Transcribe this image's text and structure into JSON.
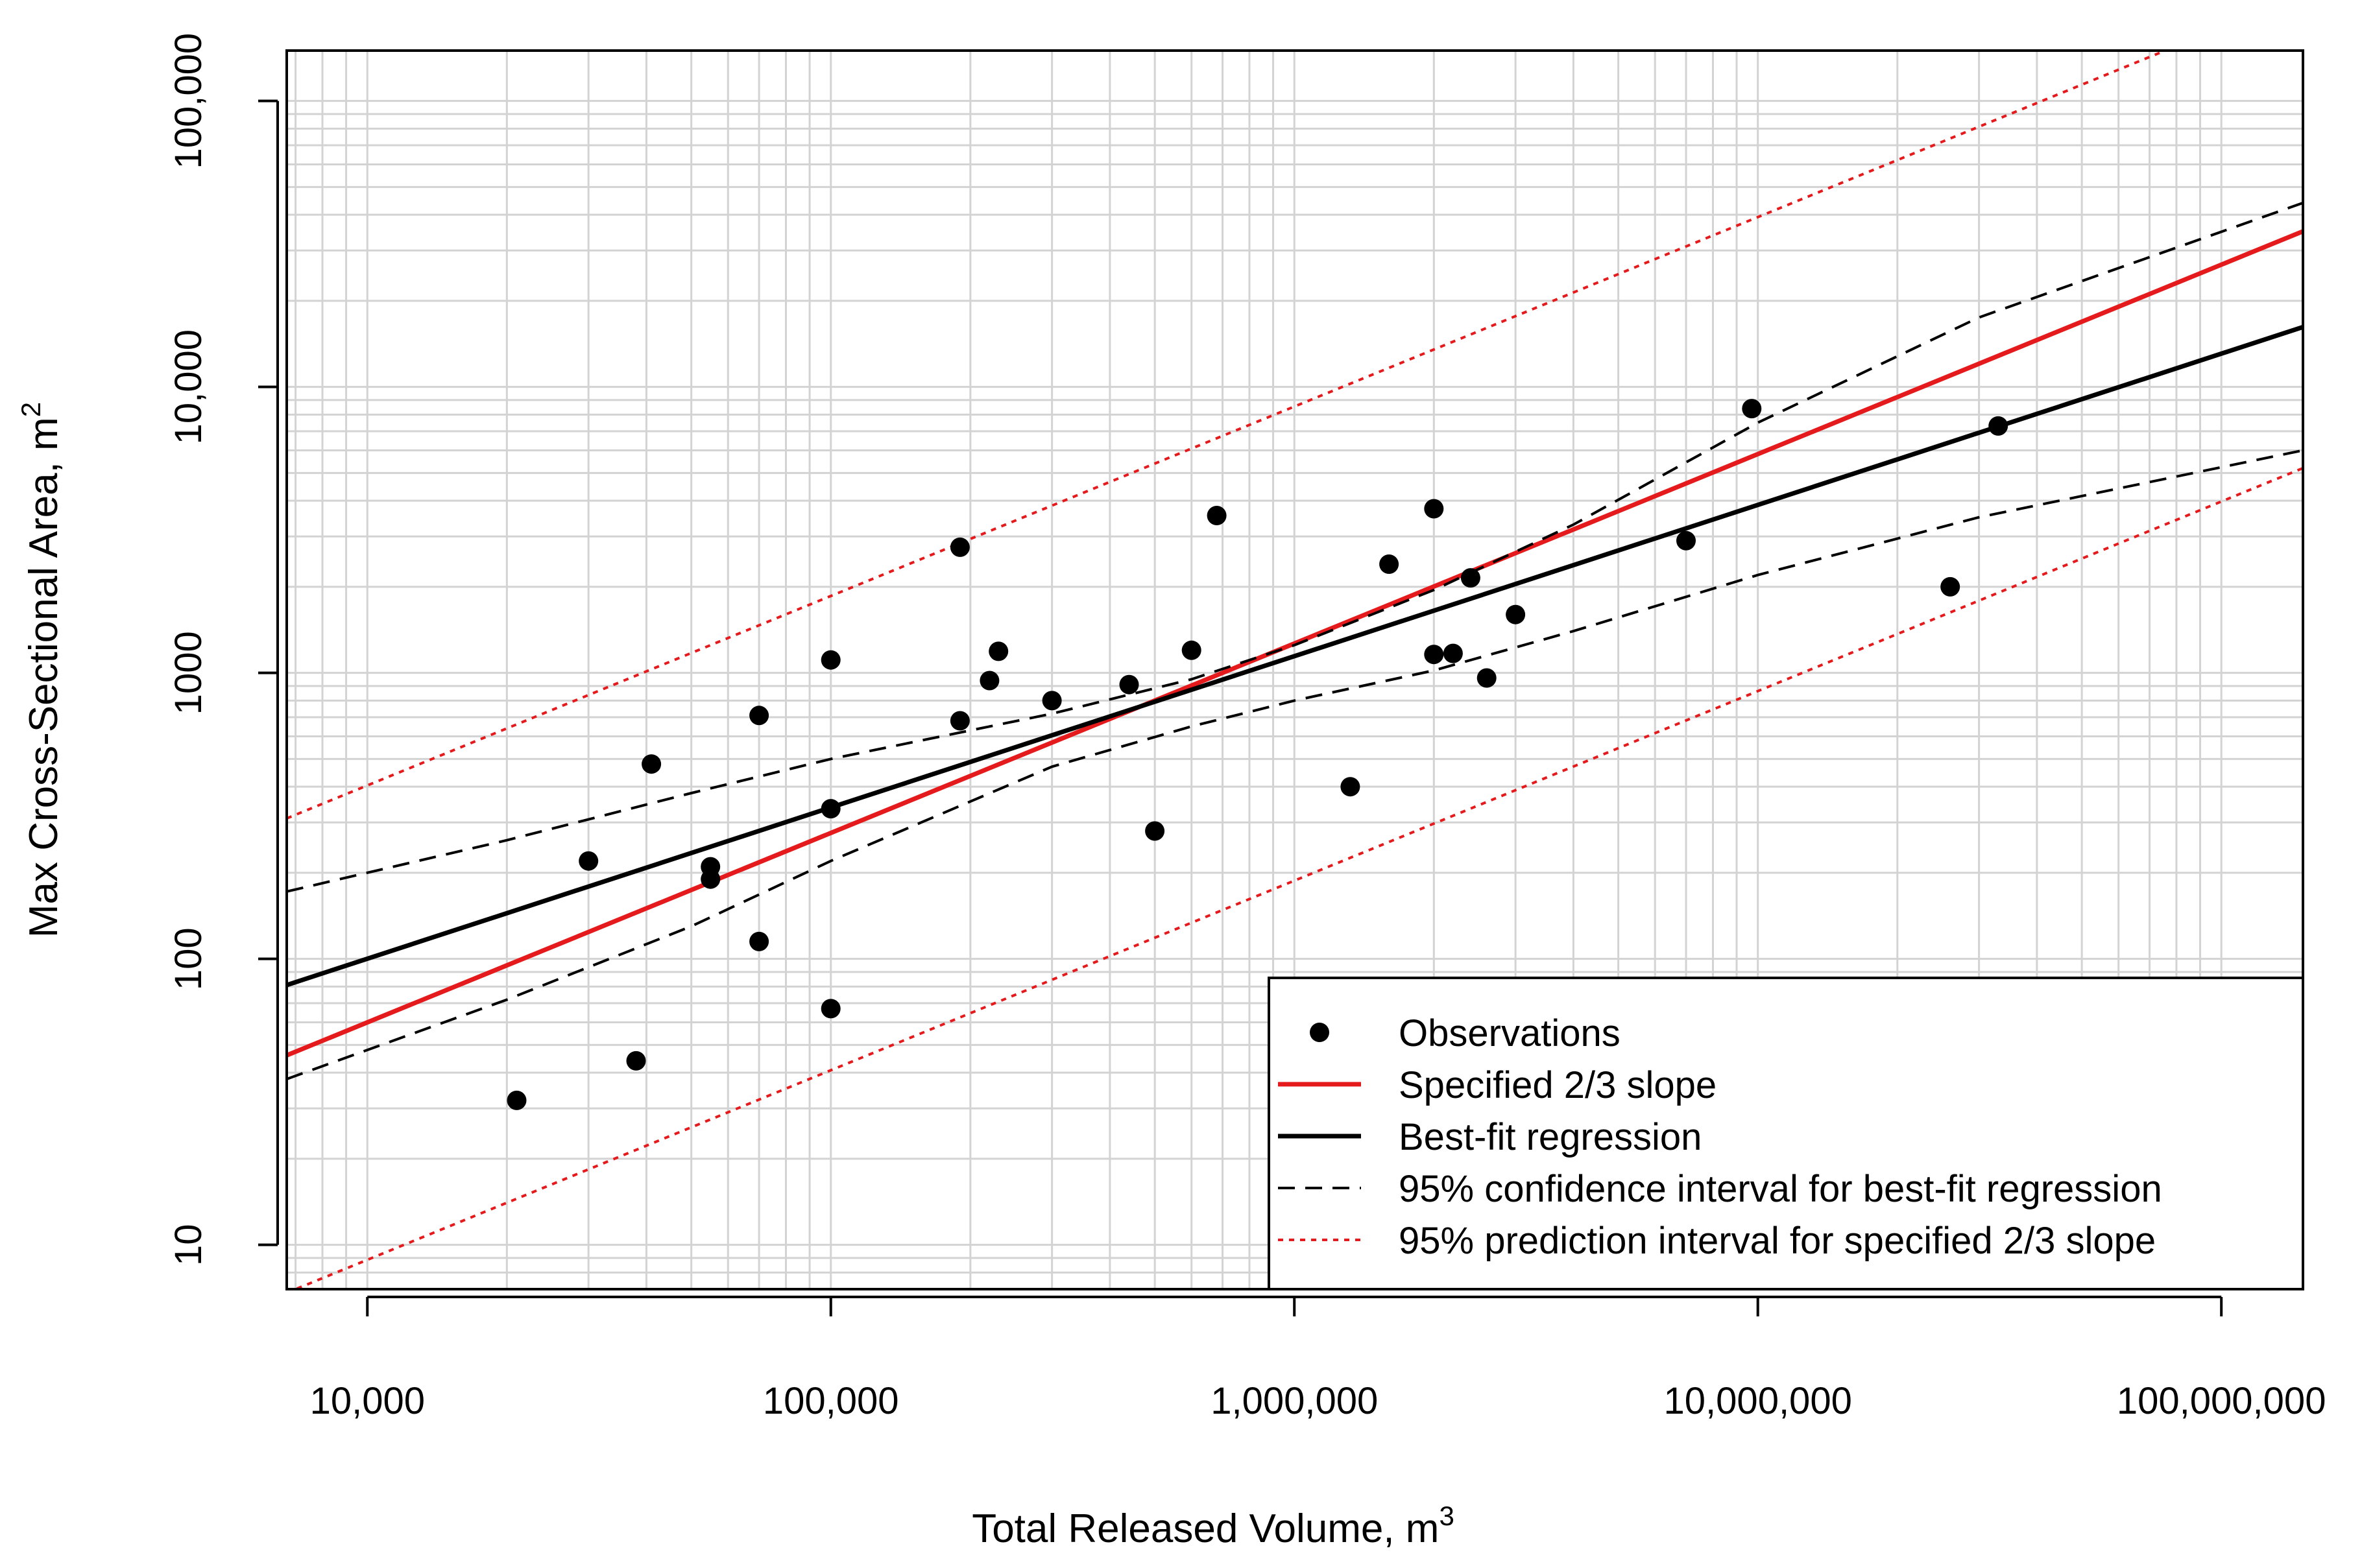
{
  "chart_data": {
    "type": "scatter",
    "title": "",
    "xlabel": "Total Released Volume, m",
    "xlabel_sup": "3",
    "ylabel": "Max Cross-Sectional Area, m",
    "ylabel_sup": "2",
    "x_scale": "log",
    "y_scale": "log",
    "xlim": [
      6700,
      150000000
    ],
    "ylim": [
      7.0,
      150000
    ],
    "grid": true,
    "legend_position": "bottom-right",
    "x_ticks": [
      {
        "value": 10000,
        "label": "10,000"
      },
      {
        "value": 100000,
        "label": "100,000"
      },
      {
        "value": 1000000,
        "label": "1,000,000"
      },
      {
        "value": 10000000,
        "label": "10,000,000"
      },
      {
        "value": 100000000,
        "label": "100,000,000"
      }
    ],
    "y_ticks": [
      {
        "value": 10,
        "label": "10"
      },
      {
        "value": 100,
        "label": "100"
      },
      {
        "value": 1000,
        "label": "1000"
      },
      {
        "value": 10000,
        "label": "10,000"
      },
      {
        "value": 100000,
        "label": "100,000"
      }
    ],
    "series": [
      {
        "name": "Observations",
        "kind": "points",
        "color": "#000000",
        "points": [
          [
            21000,
            32
          ],
          [
            30000,
            220
          ],
          [
            38000,
            44
          ],
          [
            41000,
            480
          ],
          [
            55000,
            190
          ],
          [
            55000,
            210
          ],
          [
            70000,
            710
          ],
          [
            70000,
            115
          ],
          [
            100000,
            1110
          ],
          [
            100000,
            335
          ],
          [
            100000,
            67
          ],
          [
            190000,
            2750
          ],
          [
            190000,
            680
          ],
          [
            220000,
            940
          ],
          [
            230000,
            1190
          ],
          [
            300000,
            800
          ],
          [
            440000,
            910
          ],
          [
            500000,
            280
          ],
          [
            600000,
            1200
          ],
          [
            680000,
            3550
          ],
          [
            1320000,
            400
          ],
          [
            1600000,
            2400
          ],
          [
            2000000,
            3750
          ],
          [
            2000000,
            1160
          ],
          [
            2200000,
            1170
          ],
          [
            2400000,
            2150
          ],
          [
            2600000,
            960
          ],
          [
            3000000,
            1600
          ],
          [
            7000000,
            2900
          ],
          [
            9700000,
            8400
          ],
          [
            26000000,
            2000
          ],
          [
            33000000,
            7300
          ]
        ]
      },
      {
        "name": "Specified 2/3 slope",
        "kind": "line",
        "color": "#e41a1c",
        "style": "solid",
        "points": [
          [
            6700,
            46
          ],
          [
            150000000,
            35000
          ]
        ]
      },
      {
        "name": "Best-fit regression",
        "kind": "line",
        "color": "#000000",
        "style": "solid",
        "points": [
          [
            6700,
            81
          ],
          [
            150000000,
            16200
          ]
        ]
      },
      {
        "name": "95% confidence interval for best-fit regression",
        "kind": "line",
        "color": "#000000",
        "style": "dashed",
        "points": [
          [
            6700,
            172
          ],
          [
            20000,
            260
          ],
          [
            50000,
            380
          ],
          [
            100000,
            500
          ],
          [
            300000,
            720
          ],
          [
            600000,
            950
          ],
          [
            1000000,
            1250
          ],
          [
            2000000,
            1950
          ],
          [
            4000000,
            3300
          ],
          [
            10000000,
            7500
          ],
          [
            30000000,
            17500
          ],
          [
            150000000,
            44000
          ]
        ]
      },
      {
        "name": "95% confidence interval for best-fit regression",
        "kind": "line",
        "color": "#000000",
        "style": "dashed",
        "points": [
          [
            6700,
            38
          ],
          [
            20000,
            72
          ],
          [
            50000,
            130
          ],
          [
            100000,
            220
          ],
          [
            300000,
            470
          ],
          [
            600000,
            650
          ],
          [
            1000000,
            800
          ],
          [
            2000000,
            1020
          ],
          [
            4000000,
            1400
          ],
          [
            10000000,
            2200
          ],
          [
            30000000,
            3500
          ],
          [
            150000000,
            6000
          ]
        ]
      },
      {
        "name": "95% prediction interval for specified 2/3 slope",
        "kind": "line",
        "color": "#e41a1c",
        "style": "dotted",
        "points": [
          [
            6700,
            310
          ],
          [
            150000000,
            236000
          ]
        ]
      },
      {
        "name": "95% prediction interval for specified 2/3 slope",
        "kind": "line",
        "color": "#e41a1c",
        "style": "dotted",
        "points": [
          [
            6700,
            6.8
          ],
          [
            150000000,
            5200
          ]
        ]
      }
    ],
    "legend": [
      {
        "label": "Observations",
        "symbol": "point",
        "color": "#000000"
      },
      {
        "label": "Specified 2/3 slope",
        "symbol": "line",
        "style": "solid",
        "color": "#e41a1c"
      },
      {
        "label": "Best-fit regression",
        "symbol": "line",
        "style": "solid",
        "color": "#000000"
      },
      {
        "label": "95% confidence interval for best-fit regression",
        "symbol": "line",
        "style": "dashed",
        "color": "#000000"
      },
      {
        "label": "95% prediction interval for specified 2/3 slope",
        "symbol": "line",
        "style": "dotted",
        "color": "#e41a1c"
      }
    ]
  }
}
